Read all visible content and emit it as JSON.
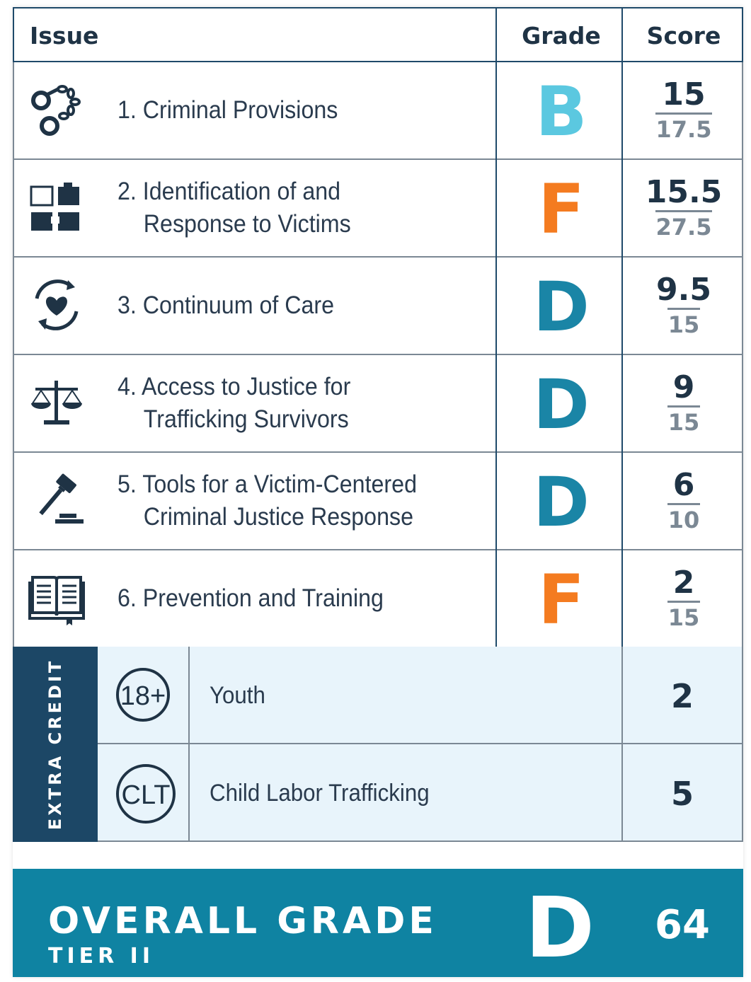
{
  "header": {
    "issue": "Issue",
    "grade": "Grade",
    "score": "Score"
  },
  "colors": {
    "grade_B": "#5bc8e0",
    "grade_F": "#f47b20",
    "grade_D": "#1a85a6"
  },
  "issues": [
    {
      "line1": "1. Criminal Provisions",
      "line2": "",
      "grade": "B",
      "score": "15",
      "max": "17.5",
      "icon": "handcuffs-icon"
    },
    {
      "line1": "2. Identification of and",
      "line2": "Response to Victims",
      "grade": "F",
      "score": "15.5",
      "max": "27.5",
      "icon": "puzzle-icon"
    },
    {
      "line1": "3. Continuum of Care",
      "line2": "",
      "grade": "D",
      "score": "9.5",
      "max": "15",
      "icon": "heart-cycle-icon"
    },
    {
      "line1": "4. Access to Justice for",
      "line2": "Trafficking Survivors",
      "grade": "D",
      "score": "9",
      "max": "15",
      "icon": "scales-icon"
    },
    {
      "line1": "5. Tools for a Victim-Centered",
      "line2": "Criminal Justice Response",
      "grade": "D",
      "score": "6",
      "max": "10",
      "icon": "gavel-icon"
    },
    {
      "line1": "6. Prevention and Training",
      "line2": "",
      "grade": "F",
      "score": "2",
      "max": "15",
      "icon": "book-icon"
    }
  ],
  "extra_credit": {
    "title": "EXTRA CREDIT",
    "items": [
      {
        "badge": "18+",
        "label": "Youth",
        "score": "2"
      },
      {
        "badge": "CLT",
        "label": "Child Labor Trafficking",
        "score": "5"
      }
    ]
  },
  "overall": {
    "title": "OVERALL GRADE",
    "tier": "TIER II",
    "grade": "D",
    "score": "64"
  }
}
